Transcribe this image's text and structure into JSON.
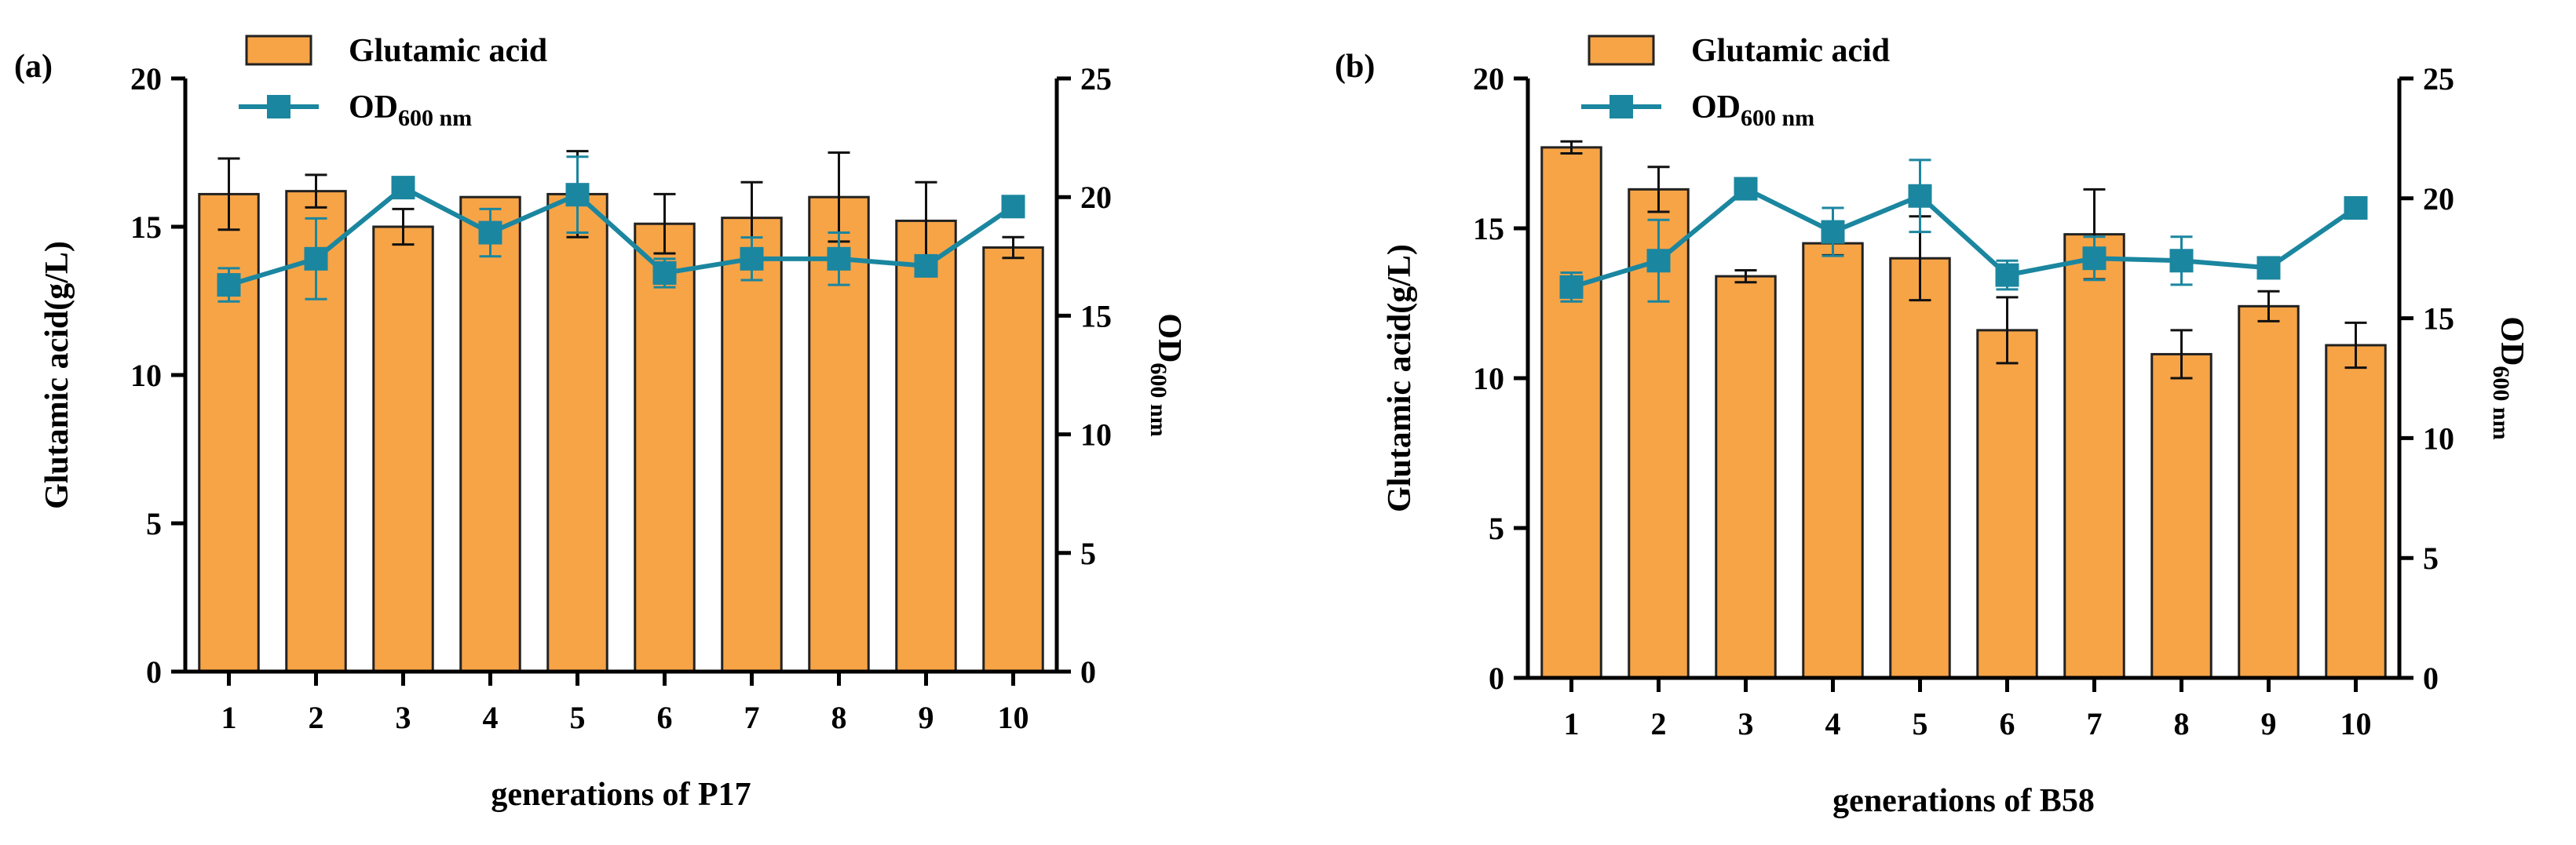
{
  "colors": {
    "bar_fill": "#f7a447",
    "bar_stroke": "#222222",
    "line": "#1b869f",
    "axis": "#000000"
  },
  "chart_data": [
    {
      "type": "bar",
      "panel_label": "(a)",
      "categories": [
        "1",
        "2",
        "3",
        "4",
        "5",
        "6",
        "7",
        "8",
        "9",
        "10"
      ],
      "xlabel": "generations of P17",
      "ylabel": "Glutamic acid(g/L)",
      "ylabel_right_main": "OD",
      "ylabel_right_sub": "600 nm",
      "ylim": [
        0,
        20
      ],
      "yticks": [
        "0",
        "5",
        "10",
        "15",
        "20"
      ],
      "y2lim": [
        0,
        25
      ],
      "y2ticks": [
        "0",
        "5",
        "10",
        "15",
        "20",
        "25"
      ],
      "legend": {
        "bar": "Glutamic acid",
        "line_main": "OD",
        "line_sub": "600 nm",
        "position": "top-center"
      },
      "series": [
        {
          "name": "Glutamic acid",
          "axis": "left",
          "values": [
            16.1,
            16.2,
            15.0,
            16.0,
            16.1,
            15.1,
            15.3,
            16.0,
            15.2,
            14.3
          ],
          "errors": [
            1.2,
            0.55,
            0.6,
            0.0,
            1.45,
            1.0,
            1.2,
            1.5,
            1.3,
            0.35
          ]
        },
        {
          "name": "OD600 nm",
          "axis": "right",
          "values": [
            16.3,
            17.4,
            20.4,
            18.5,
            20.1,
            16.8,
            17.4,
            17.4,
            17.1,
            19.6
          ],
          "errors": [
            0.7,
            1.7,
            0.4,
            1.0,
            1.6,
            0.6,
            0.9,
            1.1,
            0.3,
            0.2
          ]
        }
      ]
    },
    {
      "type": "bar",
      "panel_label": "(b)",
      "categories": [
        "1",
        "2",
        "3",
        "4",
        "5",
        "6",
        "7",
        "8",
        "9",
        "10"
      ],
      "xlabel": "generations of B58",
      "ylabel": "Glutamic acid(g/L)",
      "ylabel_right_main": "OD",
      "ylabel_right_sub": "600 nm",
      "ylim": [
        0,
        20
      ],
      "yticks": [
        "0",
        "5",
        "10",
        "15",
        "20"
      ],
      "y2lim": [
        0,
        25
      ],
      "y2ticks": [
        "0",
        "5",
        "10",
        "15",
        "20",
        "25"
      ],
      "legend": {
        "bar": "Glutamic acid",
        "line_main": "OD",
        "line_sub": "600 nm",
        "position": "top-center"
      },
      "series": [
        {
          "name": "Glutamic acid",
          "axis": "left",
          "values": [
            17.7,
            16.3,
            13.4,
            14.5,
            14.0,
            11.6,
            14.8,
            10.8,
            12.4,
            11.1
          ],
          "errors": [
            0.2,
            0.75,
            0.2,
            0.4,
            1.4,
            1.1,
            1.5,
            0.8,
            0.5,
            0.75
          ]
        },
        {
          "name": "OD600 nm",
          "axis": "right",
          "values": [
            16.3,
            17.4,
            20.4,
            18.6,
            20.1,
            16.8,
            17.5,
            17.4,
            17.1,
            19.6
          ],
          "errors": [
            0.6,
            1.7,
            0.4,
            1.0,
            1.5,
            0.6,
            0.9,
            1.0,
            0.3,
            0.2
          ]
        }
      ]
    }
  ]
}
